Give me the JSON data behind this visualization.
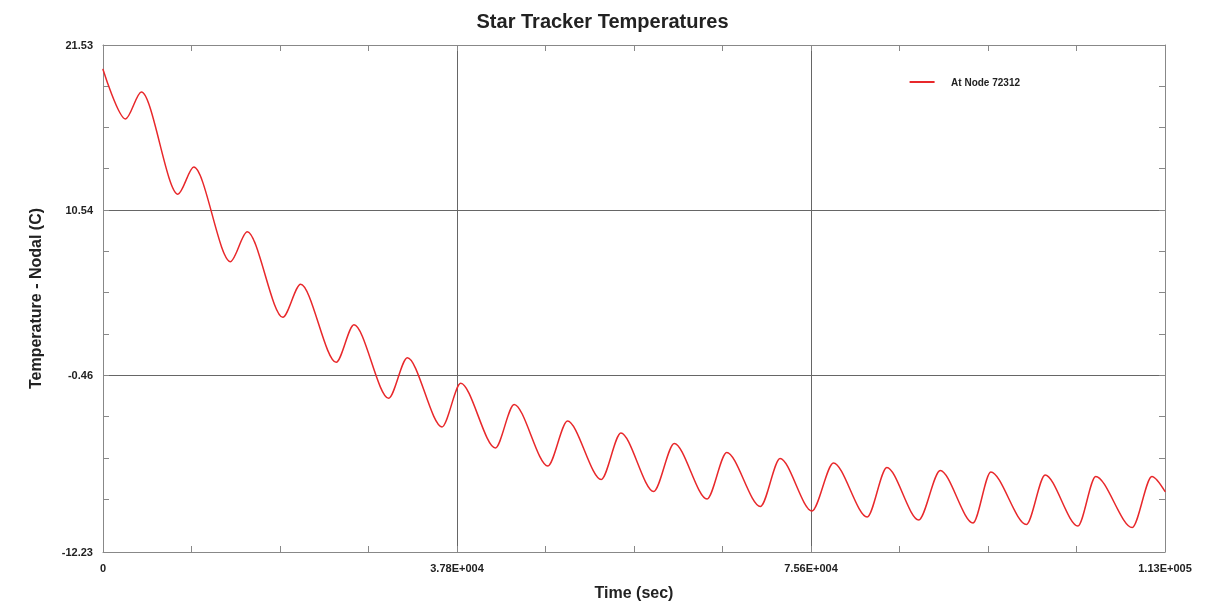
{
  "chart_data": {
    "type": "line",
    "title": "Star Tracker Temperatures",
    "xlabel": "Time (sec)",
    "ylabel": "Temperature - Nodal (C)",
    "xlim": [
      0,
      113400
    ],
    "xticks": [
      0,
      {
        "value": 9450,
        "label": null
      },
      {
        "value": 18900,
        "label": null
      },
      {
        "value": 28350,
        "label": null
      },
      {
        "value": 37800,
        "label": "3.78E+004"
      },
      {
        "value": 47250,
        "label": null
      },
      {
        "value": 56700,
        "label": null
      },
      {
        "value": 66150,
        "label": null
      },
      {
        "value": 75600,
        "label": "7.56E+004"
      },
      {
        "value": 85050,
        "label": null
      },
      {
        "value": 94500,
        "label": null
      },
      {
        "value": 103950,
        "label": null
      },
      {
        "value": 113400,
        "label": "1.13E+005"
      }
    ],
    "ylim": [
      -12.23,
      21.53
    ],
    "yticks": [
      -12.23,
      {
        "value": -8.71,
        "label": null
      },
      {
        "value": -5.96,
        "label": null
      },
      {
        "value": -3.21,
        "label": null
      },
      -0.46,
      {
        "value": 2.29,
        "label": null
      },
      {
        "value": 5.04,
        "label": null
      },
      {
        "value": 7.79,
        "label": null
      },
      10.54,
      {
        "value": 13.29,
        "label": null
      },
      {
        "value": 16.04,
        "label": null
      },
      {
        "value": 18.79,
        "label": null
      },
      21.53
    ],
    "grid": true,
    "legend": "top right",
    "marker": "none",
    "line_style": "solid",
    "series": [
      {
        "name": "At Node 72312",
        "color": "#e8282b",
        "x": [
          0,
          2400,
          4100,
          8000,
          9700,
          13600,
          15400,
          19200,
          21100,
          24900,
          26800,
          30500,
          32500,
          36200,
          38200,
          41900,
          43900,
          47500,
          49600,
          53200,
          55300,
          58800,
          61000,
          64500,
          66600,
          70200,
          72300,
          75700,
          78000,
          81600,
          83700,
          87100,
          89400,
          92900,
          94800,
          98600,
          100600,
          104100,
          106000,
          109900,
          112000,
          113400
        ],
        "values": [
          19.9,
          16.6,
          18.4,
          11.6,
          13.4,
          7.1,
          9.1,
          3.4,
          5.6,
          0.4,
          2.9,
          -2.0,
          0.7,
          -3.9,
          -1.0,
          -5.3,
          -2.4,
          -6.5,
          -3.5,
          -7.4,
          -4.3,
          -8.2,
          -5.0,
          -8.7,
          -5.6,
          -9.2,
          -6.0,
          -9.5,
          -6.3,
          -9.9,
          -6.6,
          -10.1,
          -6.8,
          -10.3,
          -6.9,
          -10.4,
          -7.1,
          -10.5,
          -7.2,
          -10.6,
          -7.2,
          -8.2
        ]
      }
    ]
  }
}
